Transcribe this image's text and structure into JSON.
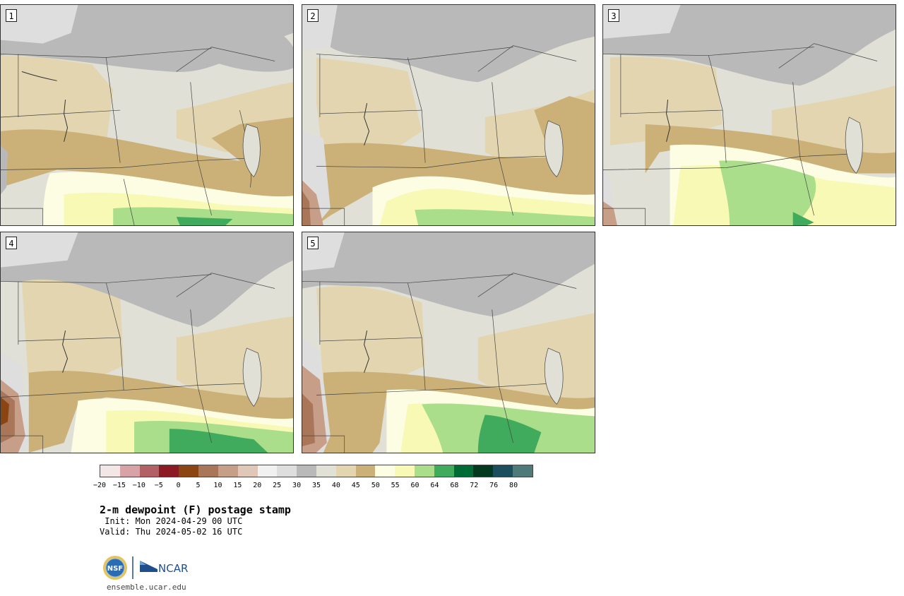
{
  "title": "2-m dewpoint (F) postage stamp",
  "init_line": " Init: Mon 2024-04-29 00 UTC",
  "valid_line": "Valid: Thu 2024-05-02 16 UTC",
  "website": "ensemble.ucar.edu",
  "logos": {
    "nsf": "NSF",
    "ncar": "NCAR"
  },
  "panels": [
    {
      "label": "1"
    },
    {
      "label": "2"
    },
    {
      "label": "3"
    },
    {
      "label": "4"
    },
    {
      "label": "5"
    }
  ],
  "colorbar": {
    "ticks": [
      "−20",
      "−15",
      "−10",
      "−5",
      "0",
      "5",
      "10",
      "15",
      "20",
      "25",
      "30",
      "35",
      "40",
      "45",
      "50",
      "55",
      "60",
      "64",
      "68",
      "72",
      "76",
      "80"
    ],
    "colors": [
      "#f2e6e6",
      "#d7a3a6",
      "#b25f66",
      "#8c1a24",
      "#8b4513",
      "#a9765a",
      "#c79e88",
      "#e0c8b9",
      "#f1f1f1",
      "#dedede",
      "#b9b9b9",
      "#e2e1d6",
      "#e2d5b0",
      "#cbb078",
      "#fdfde3",
      "#f7f9b5",
      "#aade8b",
      "#40ab5d",
      "#006c35",
      "#02391f",
      "#1b4f5d",
      "#4e7a7a"
    ]
  }
}
